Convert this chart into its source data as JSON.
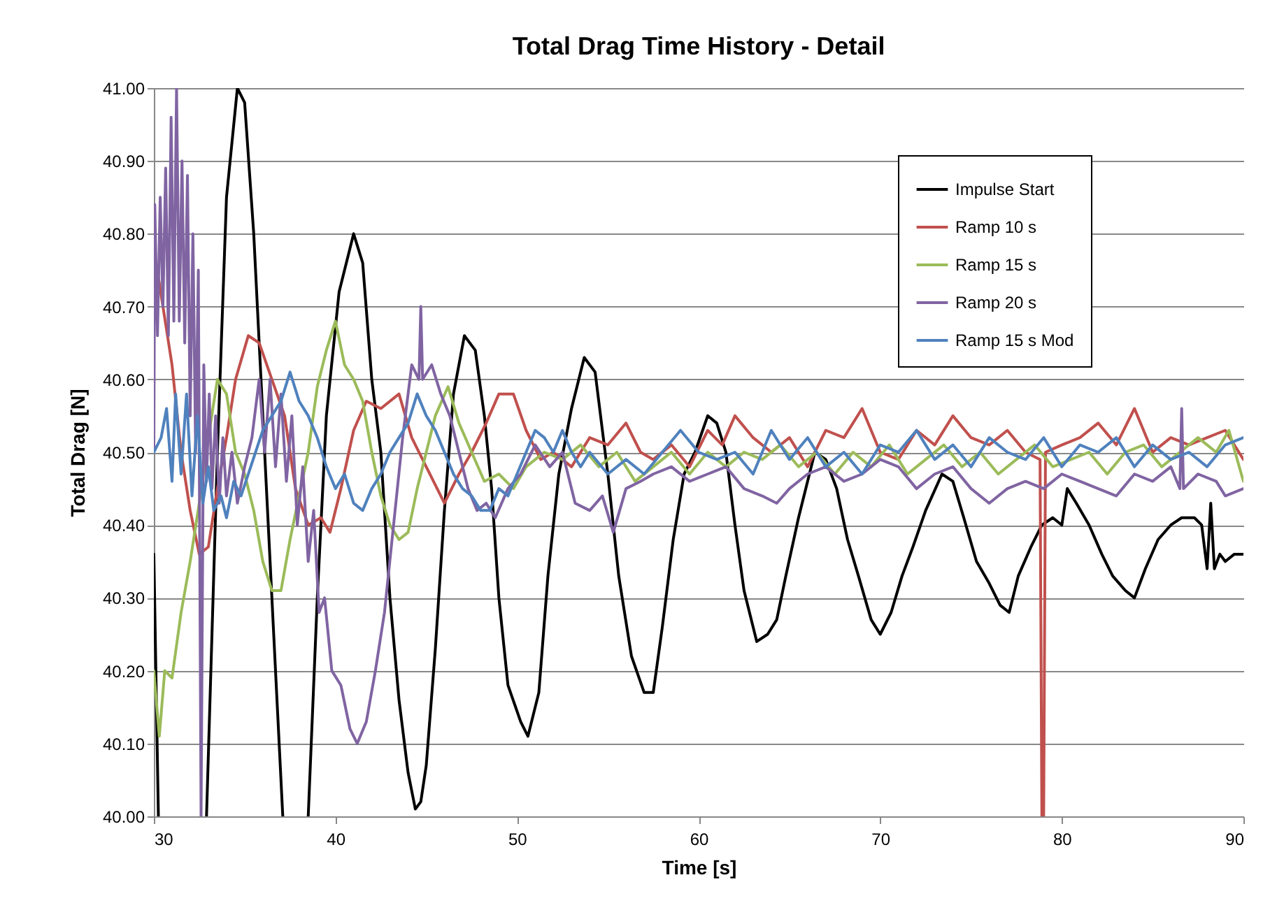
{
  "chart_data": {
    "type": "line",
    "title": "Total Drag Time History - Detail",
    "xlabel": "Time [s]",
    "ylabel": "Total Drag [N]",
    "xlim": [
      30,
      90
    ],
    "xticks": [
      30,
      40,
      50,
      60,
      70,
      80,
      90
    ],
    "ylim": [
      40,
      41
    ],
    "yticks": [
      {
        "value": 40,
        "label": "40.00"
      },
      {
        "value": 40.1,
        "label": "40.10"
      },
      {
        "value": 40.2,
        "label": "40.20"
      },
      {
        "value": 40.3,
        "label": "40.30"
      },
      {
        "value": 40.4,
        "label": "40.40"
      },
      {
        "value": 40.5,
        "label": "40.50"
      },
      {
        "value": 40.6,
        "label": "40.60"
      },
      {
        "value": 40.7,
        "label": "40.70"
      },
      {
        "value": 40.8,
        "label": "40.80"
      },
      {
        "value": 40.9,
        "label": "40.90"
      },
      {
        "value": 41,
        "label": "41.00"
      }
    ],
    "grid": "y",
    "legend": "top right",
    "marker": "none",
    "line_style": "solid",
    "series": [
      {
        "name": "Impulse Start",
        "color": "#000000",
        "x": [
          30,
          30.25,
          31.5,
          32.9,
          33.5,
          34,
          34.6,
          35,
          35.5,
          36,
          36.6,
          37.1,
          37.8,
          38.5,
          39,
          39.5,
          40.2,
          41,
          41.5,
          42,
          42.5,
          43,
          43.5,
          44,
          44.4,
          44.7,
          45,
          45.5,
          46,
          46.5,
          47.1,
          47.7,
          48.2,
          48.6,
          49,
          49.5,
          50.2,
          50.6,
          51.2,
          51.7,
          52.3,
          53,
          53.7,
          54.3,
          55,
          55.6,
          56.3,
          57,
          57.5,
          58,
          58.6,
          59.2,
          59.8,
          60.5,
          61,
          61.5,
          62,
          62.5,
          63.2,
          63.8,
          64.3,
          64.8,
          65.5,
          66.4,
          67,
          67.6,
          68.2,
          68.8,
          69.5,
          70,
          70.6,
          71.2,
          71.8,
          72.5,
          73.4,
          74,
          74.6,
          75.3,
          76,
          76.6,
          77.1,
          77.6,
          78.3,
          78.9,
          79.5,
          80,
          80.3,
          80.8,
          81.5,
          82.2,
          82.8,
          83.5,
          84,
          84.6,
          85.3,
          86,
          86.6,
          87.3,
          87.7,
          88,
          88.2,
          88.4,
          88.7,
          89,
          89.5,
          90
        ],
        "values": [
          40.36,
          40.0,
          null,
          40.0,
          40.5,
          40.85,
          41.0,
          40.98,
          40.8,
          40.55,
          40.25,
          40.0,
          null,
          40.0,
          40.3,
          40.55,
          40.72,
          40.8,
          40.76,
          40.6,
          40.5,
          40.3,
          40.16,
          40.06,
          40.01,
          40.02,
          40.07,
          40.23,
          40.42,
          40.58,
          40.66,
          40.64,
          40.55,
          40.45,
          40.3,
          40.18,
          40.13,
          40.11,
          40.17,
          40.33,
          40.47,
          40.56,
          40.63,
          40.61,
          40.47,
          40.33,
          40.22,
          40.17,
          40.17,
          40.26,
          40.38,
          40.47,
          40.5,
          40.55,
          40.54,
          40.5,
          40.4,
          40.31,
          40.24,
          40.25,
          40.27,
          40.33,
          40.41,
          40.5,
          40.49,
          40.45,
          40.38,
          40.33,
          40.27,
          40.25,
          40.28,
          40.33,
          40.37,
          40.42,
          40.47,
          40.46,
          40.41,
          40.35,
          40.32,
          40.29,
          40.28,
          40.33,
          40.37,
          40.4,
          40.41,
          40.4,
          40.45,
          40.43,
          40.4,
          40.36,
          40.33,
          40.31,
          40.3,
          40.34,
          40.38,
          40.4,
          40.41,
          40.41,
          40.4,
          40.34,
          40.43,
          40.34,
          40.36,
          40.35,
          40.36,
          40.36
        ]
      },
      {
        "name": "Ramp 10 s",
        "color": "#c0504d",
        "x": [
          30,
          30.5,
          31,
          31.5,
          32,
          32.5,
          33,
          33.5,
          34,
          34.5,
          35.2,
          35.8,
          36.5,
          37.2,
          37.8,
          38.5,
          39.2,
          39.7,
          40.3,
          41,
          41.7,
          42.5,
          43.5,
          44.2,
          45,
          46,
          46.8,
          47.5,
          48.3,
          49,
          49.8,
          50.5,
          51.3,
          52,
          53,
          54,
          55,
          56,
          56.8,
          57.5,
          58.5,
          59.5,
          60.5,
          61.3,
          62,
          63,
          64,
          65,
          66,
          67,
          68,
          69,
          70,
          71,
          72,
          73,
          74,
          75,
          76,
          77,
          78,
          78.8,
          78.9,
          79,
          79.1,
          80,
          81,
          82,
          83,
          84,
          85,
          86,
          87,
          88,
          89,
          90
        ],
        "values": [
          40.78,
          40.7,
          40.62,
          40.5,
          40.42,
          40.36,
          40.37,
          40.45,
          40.52,
          40.6,
          40.66,
          40.65,
          40.6,
          40.55,
          40.45,
          40.4,
          40.41,
          40.39,
          40.45,
          40.53,
          40.57,
          40.56,
          40.58,
          40.52,
          40.48,
          40.43,
          40.47,
          40.5,
          40.54,
          40.58,
          40.58,
          40.53,
          40.49,
          40.5,
          40.48,
          40.52,
          40.51,
          40.54,
          40.5,
          40.49,
          40.51,
          40.48,
          40.53,
          40.51,
          40.55,
          40.52,
          40.5,
          40.52,
          40.48,
          40.53,
          40.52,
          40.56,
          40.5,
          40.49,
          40.53,
          40.51,
          40.55,
          40.52,
          40.51,
          40.53,
          40.5,
          40.49,
          40.0,
          40.0,
          40.5,
          40.51,
          40.52,
          40.54,
          40.51,
          40.56,
          40.5,
          40.52,
          40.51,
          40.52,
          40.53,
          40.49
        ]
      },
      {
        "name": "Ramp 15 s",
        "color": "#9bbb59",
        "x": [
          30,
          30.3,
          30.6,
          31,
          31.5,
          32,
          32.5,
          33,
          33.5,
          34,
          34.5,
          35,
          35.5,
          36,
          36.5,
          37,
          37.5,
          38,
          38.5,
          39,
          39.5,
          40,
          40.5,
          41,
          41.5,
          42,
          42.5,
          43,
          43.5,
          44,
          44.5,
          45,
          45.5,
          46.2,
          46.8,
          47.5,
          48.2,
          49,
          49.8,
          50.5,
          51.5,
          52.5,
          53.5,
          54.5,
          55.5,
          56.5,
          57.5,
          58.5,
          59.5,
          60.5,
          61.5,
          62.5,
          63.5,
          64.5,
          65.5,
          66.5,
          67.5,
          68.5,
          69.5,
          70.5,
          71.5,
          72.5,
          73.5,
          74.5,
          75.5,
          76.5,
          77.5,
          78.5,
          79.5,
          80.5,
          81.5,
          82.5,
          83.5,
          84.5,
          85.5,
          86.5,
          87.5,
          88.5,
          89.2,
          90
        ],
        "values": [
          40.2,
          40.11,
          40.2,
          40.19,
          40.28,
          40.35,
          40.43,
          40.52,
          40.6,
          40.58,
          40.5,
          40.47,
          40.42,
          40.35,
          40.31,
          40.31,
          40.38,
          40.44,
          40.5,
          40.59,
          40.64,
          40.68,
          40.62,
          40.6,
          40.57,
          40.5,
          40.44,
          40.4,
          40.38,
          40.39,
          40.45,
          40.5,
          40.55,
          40.59,
          40.54,
          40.5,
          40.46,
          40.47,
          40.45,
          40.48,
          40.5,
          40.49,
          40.51,
          40.48,
          40.5,
          40.46,
          40.48,
          40.5,
          40.47,
          40.5,
          40.48,
          40.5,
          40.49,
          40.51,
          40.48,
          40.5,
          40.47,
          40.5,
          40.48,
          40.51,
          40.47,
          40.49,
          40.51,
          40.48,
          40.5,
          40.47,
          40.49,
          40.51,
          40.48,
          40.49,
          40.5,
          40.47,
          40.5,
          40.51,
          40.48,
          40.5,
          40.52,
          40.5,
          40.53,
          40.46
        ]
      },
      {
        "name": "Ramp 20 s",
        "color": "#8064a2",
        "x": [
          30,
          30.05,
          30.2,
          30.35,
          30.5,
          30.65,
          30.8,
          30.95,
          31.1,
          31.25,
          31.4,
          31.55,
          31.7,
          31.85,
          32,
          32.15,
          32.3,
          32.45,
          32.6,
          32.75,
          32.9,
          33.05,
          33.2,
          33.4,
          33.6,
          33.8,
          34,
          34.3,
          34.6,
          35,
          35.4,
          35.8,
          36.1,
          36.4,
          36.7,
          37,
          37.3,
          37.6,
          37.9,
          38.2,
          38.5,
          38.8,
          39.1,
          39.4,
          39.8,
          40.3,
          40.8,
          41.2,
          41.7,
          42.2,
          42.7,
          43.2,
          43.7,
          44.2,
          44.6,
          44.7,
          44.8,
          45.3,
          45.8,
          46.3,
          46.8,
          47.3,
          47.8,
          48.3,
          48.8,
          49.5,
          50.2,
          51,
          51.8,
          52.5,
          53.2,
          54,
          54.7,
          55.3,
          56,
          56.8,
          57.5,
          58.5,
          59.5,
          60.5,
          61.5,
          62.5,
          63.5,
          64.3,
          65,
          66,
          67,
          68,
          69,
          70,
          71,
          72,
          73,
          74,
          75,
          76,
          77,
          78,
          79,
          80,
          81,
          82,
          83,
          84,
          85,
          86,
          86.5,
          86.6,
          86.7,
          87.5,
          88.5,
          89,
          90
        ],
        "values": [
          40.5,
          40.84,
          40.66,
          40.85,
          40.7,
          40.89,
          40.66,
          40.96,
          40.68,
          41.0,
          40.68,
          40.9,
          40.65,
          40.88,
          40.55,
          40.8,
          40.5,
          40.75,
          40.0,
          40.62,
          40.46,
          40.58,
          40.45,
          40.55,
          40.43,
          40.52,
          40.44,
          40.5,
          40.43,
          40.48,
          40.52,
          40.6,
          40.5,
          40.6,
          40.48,
          40.58,
          40.46,
          40.55,
          40.4,
          40.48,
          40.35,
          40.42,
          40.28,
          40.3,
          40.2,
          40.18,
          40.12,
          40.1,
          40.13,
          40.2,
          40.28,
          40.4,
          40.52,
          40.62,
          40.6,
          40.7,
          40.6,
          40.62,
          40.58,
          40.55,
          40.5,
          40.45,
          40.42,
          40.43,
          40.41,
          40.45,
          40.47,
          40.51,
          40.48,
          40.5,
          40.43,
          40.42,
          40.44,
          40.39,
          40.45,
          40.46,
          40.47,
          40.48,
          40.46,
          40.47,
          40.48,
          40.45,
          40.44,
          40.43,
          40.45,
          40.47,
          40.48,
          40.46,
          40.47,
          40.49,
          40.48,
          40.45,
          40.47,
          40.48,
          40.45,
          40.43,
          40.45,
          40.46,
          40.45,
          40.47,
          40.46,
          40.45,
          40.44,
          40.47,
          40.46,
          40.48,
          40.45,
          40.56,
          40.45,
          40.47,
          40.46,
          40.44,
          40.45
        ]
      },
      {
        "name": "Ramp 15 s Mod",
        "color": "#4f81bd",
        "x": [
          30,
          30.4,
          30.7,
          31,
          31.2,
          31.5,
          31.8,
          32.1,
          32.4,
          32.7,
          33,
          33.3,
          33.7,
          34,
          34.4,
          34.8,
          35.2,
          35.6,
          36,
          36.5,
          37,
          37.5,
          38,
          38.5,
          39,
          39.5,
          40,
          40.5,
          41,
          41.5,
          42,
          42.5,
          43,
          43.5,
          44,
          44.5,
          45,
          45.5,
          46,
          46.5,
          47,
          47.5,
          48,
          48.5,
          49,
          49.5,
          50,
          50.5,
          51,
          51.5,
          52,
          52.5,
          53,
          53.5,
          54,
          55,
          56,
          57,
          58,
          59,
          60,
          61,
          62,
          63,
          64,
          65,
          66,
          67,
          68,
          69,
          70,
          71,
          72,
          73,
          74,
          75,
          76,
          77,
          78,
          79,
          80,
          81,
          82,
          83,
          84,
          85,
          86,
          87,
          88,
          89,
          90
        ],
        "values": [
          40.5,
          40.52,
          40.56,
          40.46,
          40.58,
          40.47,
          40.58,
          40.44,
          40.55,
          40.43,
          40.48,
          40.42,
          40.44,
          40.41,
          40.46,
          40.44,
          40.47,
          40.5,
          40.53,
          40.55,
          40.57,
          40.61,
          40.57,
          40.55,
          40.52,
          40.48,
          40.45,
          40.47,
          40.43,
          40.42,
          40.45,
          40.47,
          40.5,
          40.52,
          40.54,
          40.58,
          40.55,
          40.53,
          40.5,
          40.47,
          40.45,
          40.44,
          40.42,
          40.42,
          40.45,
          40.44,
          40.47,
          40.5,
          40.53,
          40.52,
          40.5,
          40.53,
          40.5,
          40.48,
          40.5,
          40.47,
          40.49,
          40.47,
          40.5,
          40.53,
          40.5,
          40.49,
          40.5,
          40.47,
          40.53,
          40.49,
          40.52,
          40.48,
          40.5,
          40.47,
          40.51,
          40.5,
          40.53,
          40.49,
          40.51,
          40.48,
          40.52,
          40.5,
          40.49,
          40.52,
          40.48,
          40.51,
          40.5,
          40.52,
          40.48,
          40.51,
          40.49,
          40.5,
          40.48,
          40.51,
          40.52
        ]
      }
    ]
  }
}
